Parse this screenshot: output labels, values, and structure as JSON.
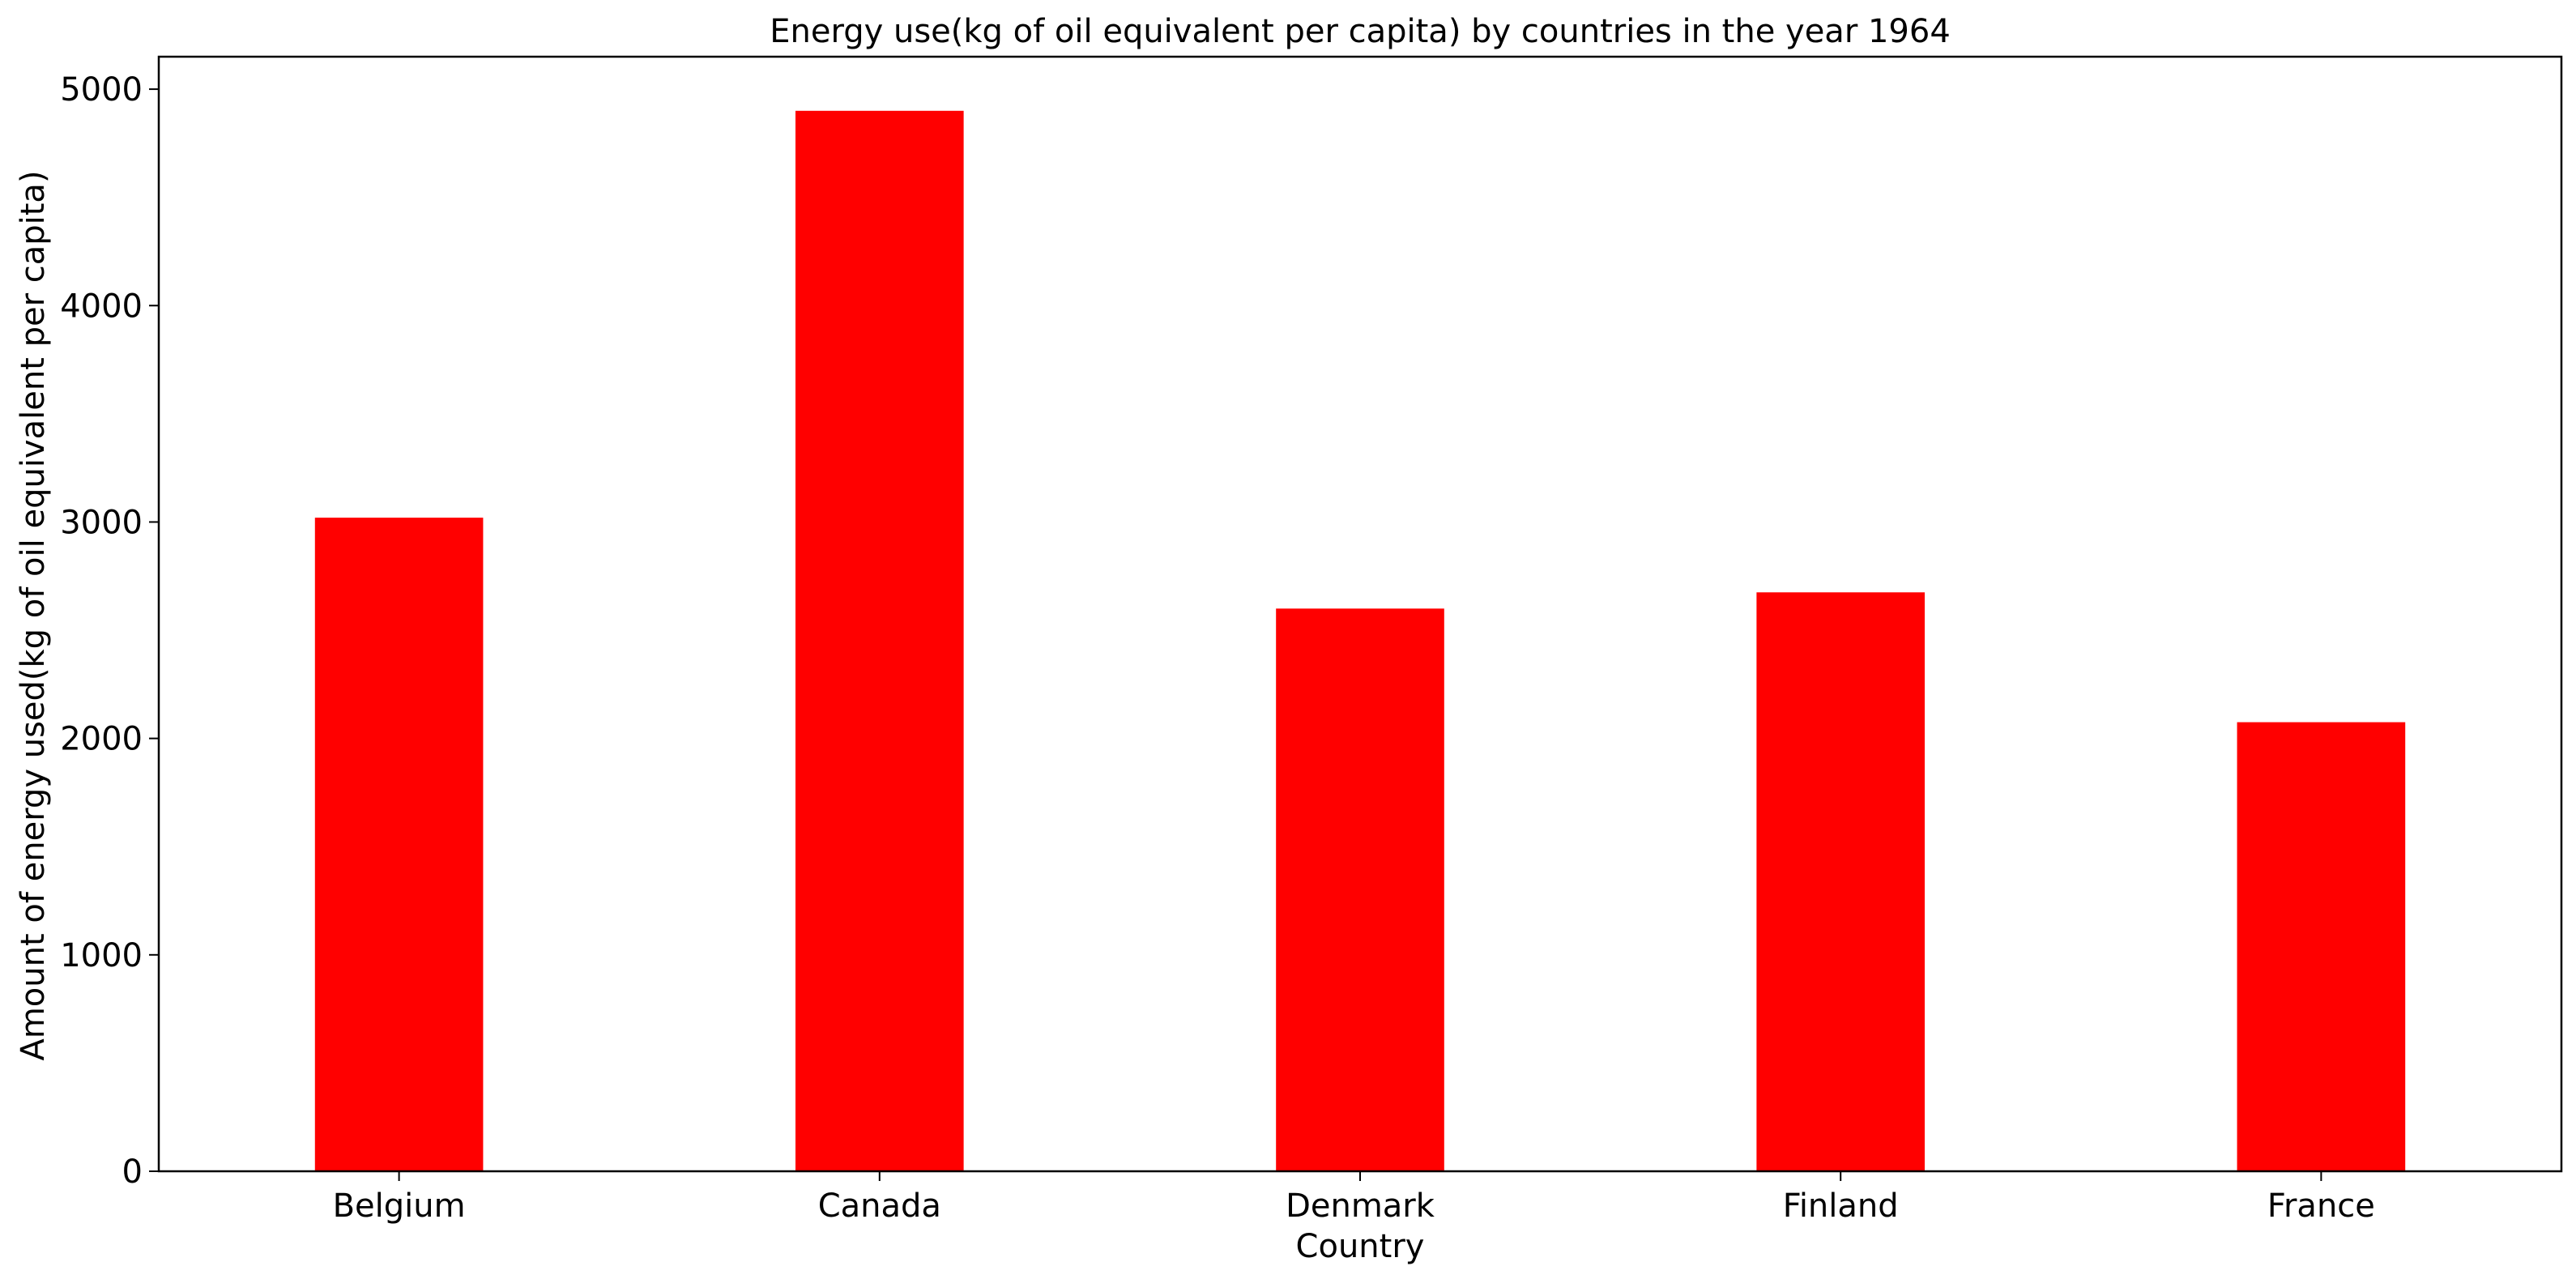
{
  "chart_data": {
    "type": "bar",
    "title": "Energy use(kg of oil equivalent per capita) by countries in the year 1964",
    "xlabel": "Country",
    "ylabel": "Amount of energy used(kg of oil equivalent per capita)",
    "categories": [
      "Belgium",
      "Canada",
      "Denmark",
      "Finland",
      "France"
    ],
    "values": [
      3020,
      4900,
      2600,
      2675,
      2075
    ],
    "ylim": [
      0,
      5150
    ],
    "yticks": [
      0,
      1000,
      2000,
      3000,
      4000,
      5000
    ],
    "bar_color": "#ff0000",
    "grid": false,
    "legend": "none"
  }
}
